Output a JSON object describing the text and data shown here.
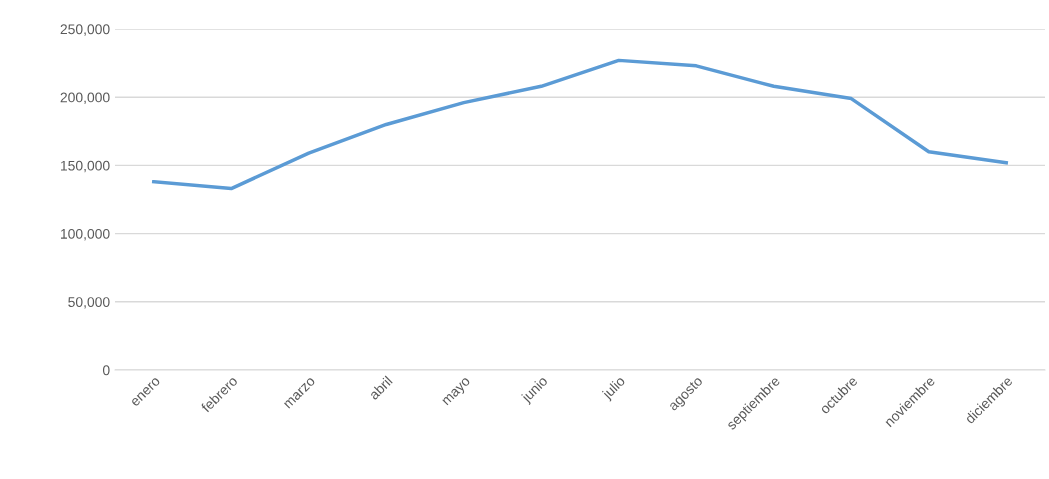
{
  "chart_data": {
    "type": "line",
    "categories": [
      "enero",
      "febrero",
      "marzo",
      "abril",
      "mayo",
      "junio",
      "julio",
      "agosto",
      "septiembre",
      "octubre",
      "noviembre",
      "diciembre"
    ],
    "series": [
      {
        "color": "#5b9bd5",
        "values": [
          138000,
          133000,
          159000,
          180000,
          196000,
          208000,
          227000,
          223000,
          208000,
          199000,
          160000,
          152000
        ]
      }
    ],
    "ylim": [
      0,
      250000
    ],
    "yticks": [
      {
        "value": 0,
        "label": "0"
      },
      {
        "value": 50000,
        "label": "50,000"
      },
      {
        "value": 100000,
        "label": "100,000"
      },
      {
        "value": 150000,
        "label": "150,000"
      },
      {
        "value": 200000,
        "label": "200,000"
      },
      {
        "value": 250000,
        "label": "250,000"
      }
    ],
    "grid": "y",
    "legend": false,
    "marker": "none",
    "line_style": "solid"
  }
}
